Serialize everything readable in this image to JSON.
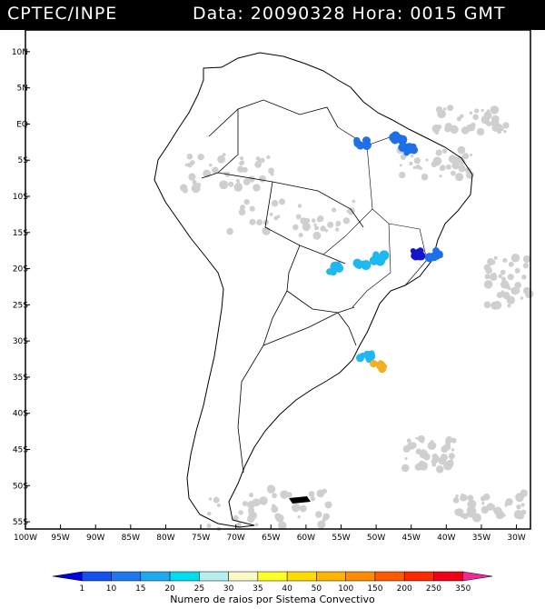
{
  "header": {
    "source": "CPTEC/INPE",
    "date_time": "Data: 20090328 Hora: 0015 GMT"
  },
  "map": {
    "lat_labels": [
      "10N",
      "5N",
      "EQ",
      "5S",
      "10S",
      "15S",
      "20S",
      "25S",
      "30S",
      "35S",
      "40S",
      "45S",
      "50S",
      "55S"
    ],
    "lat_values": [
      10,
      5,
      0,
      -5,
      -10,
      -15,
      -20,
      -25,
      -30,
      -35,
      -40,
      -45,
      -50,
      -55
    ],
    "lon_labels": [
      "100W",
      "95W",
      "90W",
      "85W",
      "80W",
      "75W",
      "70W",
      "65W",
      "60W",
      "55W",
      "50W",
      "45W",
      "40W",
      "35W",
      "30W"
    ],
    "lon_values": [
      -100,
      -95,
      -90,
      -85,
      -80,
      -75,
      -70,
      -65,
      -60,
      -55,
      -50,
      -45,
      -40,
      -35,
      -30
    ],
    "extent": {
      "lon_min": -100,
      "lon_max": -28,
      "lat_min": -56,
      "lat_max": 13
    },
    "convective_systems": [
      {
        "lon": -52,
        "lat": -2.7,
        "color": "#1e6fe8"
      },
      {
        "lon": -47,
        "lat": -2,
        "color": "#1e6fe8"
      },
      {
        "lon": -45.5,
        "lat": -3.5,
        "color": "#1e6fe8"
      },
      {
        "lon": -41.5,
        "lat": -18,
        "color": "#1e6fe8"
      },
      {
        "lon": -44,
        "lat": -18,
        "color": "#1414c8"
      },
      {
        "lon": -49.5,
        "lat": -18.5,
        "color": "#1fb8f0"
      },
      {
        "lon": -52,
        "lat": -19.5,
        "color": "#1fb8f0"
      },
      {
        "lon": -56,
        "lat": -20,
        "color": "#1fb8f0"
      },
      {
        "lon": -51.5,
        "lat": -32,
        "color": "#1fb8f0"
      },
      {
        "lon": -49.5,
        "lat": -33.5,
        "color": "#f0b020"
      }
    ]
  },
  "colorbar": {
    "labels": [
      "1",
      "10",
      "15",
      "20",
      "25",
      "30",
      "35",
      "40",
      "50",
      "100",
      "150",
      "200",
      "250",
      "350"
    ],
    "colors": [
      "#0000e0",
      "#1450f0",
      "#1e78f0",
      "#1eaaf0",
      "#00dcf0",
      "#b4f0f0",
      "#fafac8",
      "#ffff28",
      "#ffdc00",
      "#ffb400",
      "#ff8c00",
      "#ff5a00",
      "#ff2800",
      "#f00014",
      "#f02896"
    ],
    "caption": "Numero de raios por Sistema Convectivo"
  }
}
